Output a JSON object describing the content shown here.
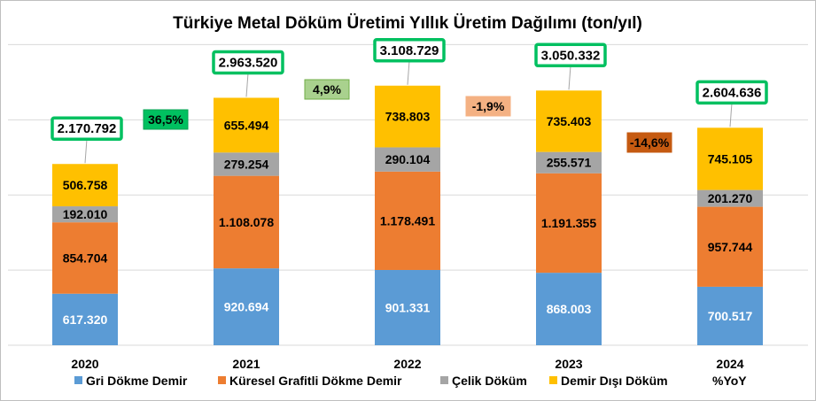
{
  "chart_data": {
    "type": "bar",
    "stacked": true,
    "title": "Türkiye Metal Döküm Üretimi Yıllık Üretim Dağılımı (ton/yıl)",
    "categories": [
      "2020",
      "2021",
      "2022",
      "2023",
      "2024"
    ],
    "series": [
      {
        "name": "Gri Dökme Demir",
        "color": "#5b9bd5",
        "values": [
          617320,
          920694,
          901331,
          868003,
          700517
        ],
        "labels": [
          "617.320",
          "920.694",
          "901.331",
          "868.003",
          "700.517"
        ]
      },
      {
        "name": "Küresel Grafitli Dökme Demir",
        "color": "#ed7d31",
        "values": [
          854704,
          1108078,
          1178491,
          1191355,
          957744
        ],
        "labels": [
          "854.704",
          "1.108.078",
          "1.178.491",
          "1.191.355",
          "957.744"
        ]
      },
      {
        "name": "Çelik Döküm",
        "color": "#a5a5a5",
        "values": [
          192010,
          279254,
          290104,
          255571,
          201270
        ],
        "labels": [
          "192.010",
          "279.254",
          "290.104",
          "255.571",
          "201.270"
        ]
      },
      {
        "name": "Demir Dışı Döküm",
        "color": "#ffc000",
        "values": [
          506758,
          655494,
          738803,
          735403,
          745105
        ],
        "labels": [
          "506.758",
          "655.494",
          "738.803",
          "735.403",
          "745.105"
        ]
      }
    ],
    "totals": [
      2170792,
      2963520,
      3108729,
      3050332,
      2604636
    ],
    "total_labels": [
      "2.170.792",
      "2.963.520",
      "3.108.729",
      "3.050.332",
      "2.604.636"
    ],
    "yoy": {
      "name": "%YoY",
      "values": [
        36.5,
        4.9,
        -1.9,
        -14.6
      ],
      "labels": [
        "36,5%",
        "4,9%",
        "-1,9%",
        "-14,6%"
      ],
      "fills": [
        "#00c060",
        "#a9d18e",
        "#f4b183",
        "#c55a11"
      ],
      "borders": [
        "#00a050",
        "#70ad47",
        "#f4b183",
        "#c55a11"
      ],
      "text_colors": [
        "#000000",
        "#000000",
        "#000000",
        "#000000"
      ]
    },
    "total_box_border": "#00c060",
    "ylim": [
      0,
      3700000
    ],
    "gridlines": [
      0,
      900000,
      1800000,
      2700000,
      3600000
    ],
    "grid": true,
    "axes_labels_shown": false,
    "legend_position": "bottom"
  }
}
